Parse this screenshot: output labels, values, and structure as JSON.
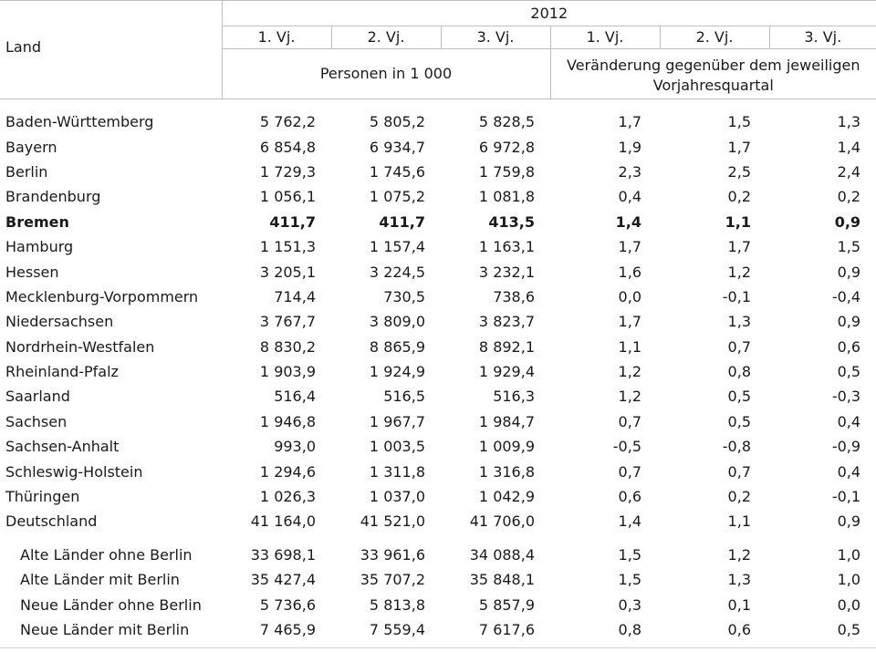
{
  "colors": {
    "header_border": "#bfbfbf",
    "bottom_border": "#d2d2d2",
    "text": "#1a1a1a"
  },
  "table": {
    "land_header": "Land",
    "year": "2012",
    "quarter_headers": [
      "1. Vj.",
      "2. Vj.",
      "3. Vj.",
      "1. Vj.",
      "2. Vj.",
      "3. Vj."
    ],
    "group_persons": "Personen in 1 000",
    "group_change": "Veränderung gegenüber dem jeweiligen Vorjahresquartal",
    "rows": [
      {
        "land": "Baden-Württemberg",
        "values": [
          "5 762,2",
          "5 805,2",
          "5 828,5",
          "1,7",
          "1,5",
          "1,3"
        ],
        "bold": false,
        "indent": false
      },
      {
        "land": "Bayern",
        "values": [
          "6 854,8",
          "6 934,7",
          "6 972,8",
          "1,9",
          "1,7",
          "1,4"
        ],
        "bold": false,
        "indent": false
      },
      {
        "land": "Berlin",
        "values": [
          "1 729,3",
          "1 745,6",
          "1 759,8",
          "2,3",
          "2,5",
          "2,4"
        ],
        "bold": false,
        "indent": false
      },
      {
        "land": "Brandenburg",
        "values": [
          "1 056,1",
          "1 075,2",
          "1 081,8",
          "0,4",
          "0,2",
          "0,2"
        ],
        "bold": false,
        "indent": false
      },
      {
        "land": "Bremen",
        "values": [
          "411,7",
          "411,7",
          "413,5",
          "1,4",
          "1,1",
          "0,9"
        ],
        "bold": true,
        "indent": false
      },
      {
        "land": "Hamburg",
        "values": [
          "1 151,3",
          "1 157,4",
          "1 163,1",
          "1,7",
          "1,7",
          "1,5"
        ],
        "bold": false,
        "indent": false
      },
      {
        "land": "Hessen",
        "values": [
          "3 205,1",
          "3 224,5",
          "3 232,1",
          "1,6",
          "1,2",
          "0,9"
        ],
        "bold": false,
        "indent": false
      },
      {
        "land": "Mecklenburg-Vorpommern",
        "values": [
          "714,4",
          "730,5",
          "738,6",
          "0,0",
          "-0,1",
          "-0,4"
        ],
        "bold": false,
        "indent": false
      },
      {
        "land": "Niedersachsen",
        "values": [
          "3 767,7",
          "3 809,0",
          "3 823,7",
          "1,7",
          "1,3",
          "0,9"
        ],
        "bold": false,
        "indent": false
      },
      {
        "land": "Nordrhein-Westfalen",
        "values": [
          "8 830,2",
          "8 865,9",
          "8 892,1",
          "1,1",
          "0,7",
          "0,6"
        ],
        "bold": false,
        "indent": false
      },
      {
        "land": "Rheinland-Pfalz",
        "values": [
          "1 903,9",
          "1 924,9",
          "1 929,4",
          "1,2",
          "0,8",
          "0,5"
        ],
        "bold": false,
        "indent": false
      },
      {
        "land": "Saarland",
        "values": [
          "516,4",
          "516,5",
          "516,3",
          "1,2",
          "0,5",
          "-0,3"
        ],
        "bold": false,
        "indent": false
      },
      {
        "land": "Sachsen",
        "values": [
          "1 946,8",
          "1 967,7",
          "1 984,7",
          "0,7",
          "0,5",
          "0,4"
        ],
        "bold": false,
        "indent": false
      },
      {
        "land": "Sachsen-Anhalt",
        "values": [
          "993,0",
          "1 003,5",
          "1 009,9",
          "-0,5",
          "-0,8",
          "-0,9"
        ],
        "bold": false,
        "indent": false
      },
      {
        "land": "Schleswig-Holstein",
        "values": [
          "1 294,6",
          "1 311,8",
          "1 316,8",
          "0,7",
          "0,7",
          "0,4"
        ],
        "bold": false,
        "indent": false
      },
      {
        "land": "Thüringen",
        "values": [
          "1 026,3",
          "1 037,0",
          "1 042,9",
          "0,6",
          "0,2",
          "-0,1"
        ],
        "bold": false,
        "indent": false
      },
      {
        "land": "Deutschland",
        "values": [
          "41 164,0",
          "41 521,0",
          "41 706,0",
          "1,4",
          "1,1",
          "0,9"
        ],
        "bold": false,
        "indent": false
      }
    ],
    "summary_rows": [
      {
        "land": "Alte Länder ohne Berlin",
        "values": [
          "33 698,1",
          "33 961,6",
          "34 088,4",
          "1,5",
          "1,2",
          "1,0"
        ],
        "bold": false,
        "indent": true
      },
      {
        "land": "Alte Länder mit Berlin",
        "values": [
          "35 427,4",
          "35 707,2",
          "35 848,1",
          "1,5",
          "1,3",
          "1,0"
        ],
        "bold": false,
        "indent": true
      },
      {
        "land": "Neue Länder ohne Berlin",
        "values": [
          "5 736,6",
          "5 813,8",
          "5 857,9",
          "0,3",
          "0,1",
          "0,0"
        ],
        "bold": false,
        "indent": true
      },
      {
        "land": "Neue Länder mit Berlin",
        "values": [
          "7 465,9",
          "7 559,4",
          "7 617,6",
          "0,8",
          "0,6",
          "0,5"
        ],
        "bold": false,
        "indent": true
      }
    ]
  }
}
